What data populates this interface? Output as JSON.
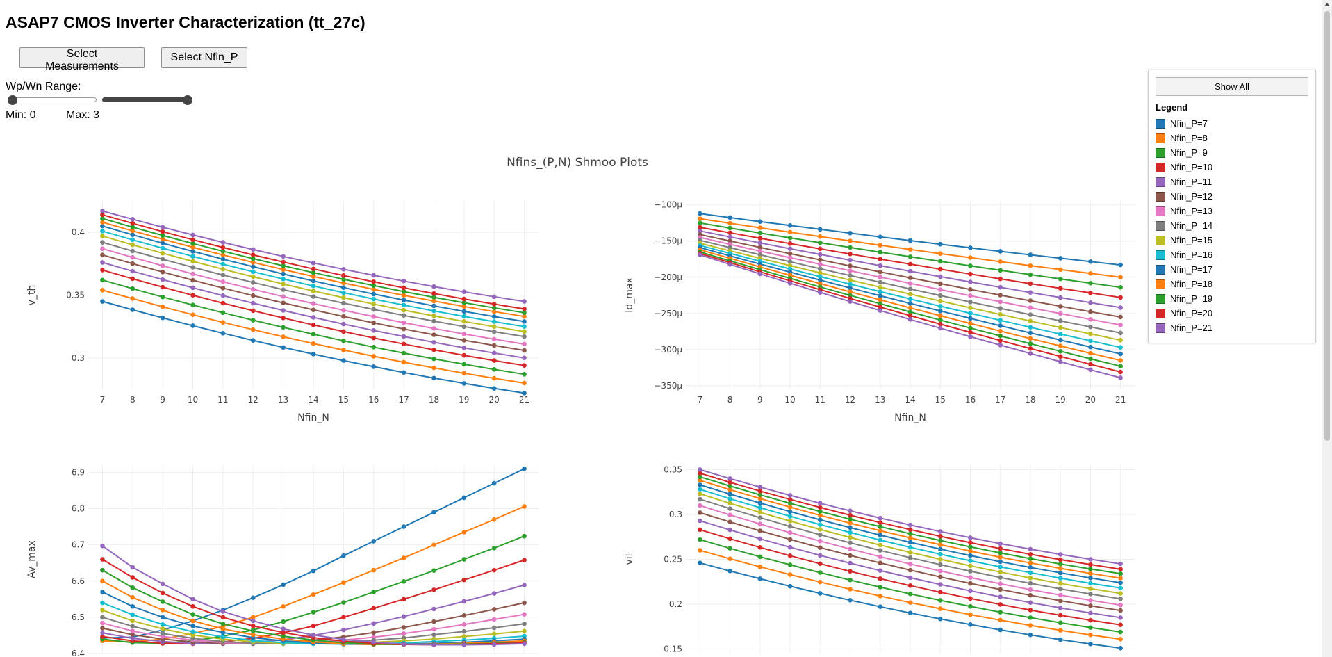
{
  "page": {
    "title": "ASAP7 CMOS Inverter Characterization (tt_27c)",
    "buttons": {
      "select_measurements": "Select Measurements",
      "select_nfin_p": "Select Nfin_P"
    },
    "range": {
      "label": "Wp/Wn Range:",
      "min_text": "Min: 0",
      "max_text": "Max: 3",
      "min_value": 0,
      "max_value": 3
    },
    "plots_title": "Nfins_(P,N) Shmoo Plots"
  },
  "legend": {
    "show_all": "Show All",
    "title": "Legend",
    "items": [
      {
        "label": "Nfin_P=7",
        "color": "#1f77b4"
      },
      {
        "label": "Nfin_P=8",
        "color": "#ff7f0e"
      },
      {
        "label": "Nfin_P=9",
        "color": "#2ca02c"
      },
      {
        "label": "Nfin_P=10",
        "color": "#d62728"
      },
      {
        "label": "Nfin_P=11",
        "color": "#9467bd"
      },
      {
        "label": "Nfin_P=12",
        "color": "#8c564b"
      },
      {
        "label": "Nfin_P=13",
        "color": "#e377c2"
      },
      {
        "label": "Nfin_P=14",
        "color": "#7f7f7f"
      },
      {
        "label": "Nfin_P=15",
        "color": "#bcbd22"
      },
      {
        "label": "Nfin_P=16",
        "color": "#17becf"
      },
      {
        "label": "Nfin_P=17",
        "color": "#1f77b4"
      },
      {
        "label": "Nfin_P=18",
        "color": "#ff7f0e"
      },
      {
        "label": "Nfin_P=19",
        "color": "#2ca02c"
      },
      {
        "label": "Nfin_P=20",
        "color": "#d62728"
      },
      {
        "label": "Nfin_P=21",
        "color": "#9467bd"
      }
    ]
  },
  "chart_data": [
    {
      "type": "line",
      "ylabel": "v_th",
      "xlabel": "Nfin_N",
      "x": [
        7,
        8,
        9,
        10,
        11,
        12,
        13,
        14,
        15,
        16,
        17,
        18,
        19,
        20,
        21
      ],
      "ylim": [
        0.275,
        0.425
      ],
      "yticks": [
        0.3,
        0.35,
        0.4
      ],
      "ytick_labels": [
        "0.3",
        "0.35",
        "0.4"
      ],
      "series": [
        {
          "name": "Nfin_P=7",
          "start": 0.345,
          "end": 0.272,
          "curve": 0.3
        },
        {
          "name": "Nfin_P=8",
          "start": 0.354,
          "end": 0.28,
          "curve": 0.3
        },
        {
          "name": "Nfin_P=9",
          "start": 0.362,
          "end": 0.287,
          "curve": 0.3
        },
        {
          "name": "Nfin_P=10",
          "start": 0.37,
          "end": 0.294,
          "curve": 0.3
        },
        {
          "name": "Nfin_P=11",
          "start": 0.376,
          "end": 0.3,
          "curve": 0.3
        },
        {
          "name": "Nfin_P=12",
          "start": 0.382,
          "end": 0.306,
          "curve": 0.3
        },
        {
          "name": "Nfin_P=13",
          "start": 0.387,
          "end": 0.311,
          "curve": 0.3
        },
        {
          "name": "Nfin_P=14",
          "start": 0.392,
          "end": 0.317,
          "curve": 0.3
        },
        {
          "name": "Nfin_P=15",
          "start": 0.397,
          "end": 0.321,
          "curve": 0.3
        },
        {
          "name": "Nfin_P=16",
          "start": 0.401,
          "end": 0.325,
          "curve": 0.3
        },
        {
          "name": "Nfin_P=17",
          "start": 0.405,
          "end": 0.329,
          "curve": 0.3
        },
        {
          "name": "Nfin_P=18",
          "start": 0.408,
          "end": 0.333,
          "curve": 0.3
        },
        {
          "name": "Nfin_P=19",
          "start": 0.411,
          "end": 0.336,
          "curve": 0.3
        },
        {
          "name": "Nfin_P=20",
          "start": 0.414,
          "end": 0.339,
          "curve": 0.3
        },
        {
          "name": "Nfin_P=21",
          "start": 0.417,
          "end": 0.345,
          "curve": 0.3
        }
      ]
    },
    {
      "type": "line",
      "ylabel": "Id_max",
      "xlabel": "Nfin_N",
      "x": [
        7,
        8,
        9,
        10,
        11,
        12,
        13,
        14,
        15,
        16,
        17,
        18,
        19,
        20,
        21
      ],
      "ylim": [
        -0.000355,
        -9.45e-05
      ],
      "yticks": [
        -0.0001,
        -0.00015,
        -0.0002,
        -0.00025,
        -0.0003,
        -0.00035
      ],
      "ytick_labels": [
        "−100μ",
        "−150μ",
        "−200μ",
        "−250μ",
        "−300μ",
        "−350μ"
      ],
      "series": [
        {
          "name": "Nfin_P=7",
          "start": -0.000112,
          "end": -0.000183,
          "curve": 0.1
        },
        {
          "name": "Nfin_P=8",
          "start": -0.000119,
          "end": -0.0002,
          "curve": 0.1
        },
        {
          "name": "Nfin_P=9",
          "start": -0.000125,
          "end": -0.000214,
          "curve": 0.1
        },
        {
          "name": "Nfin_P=10",
          "start": -0.000131,
          "end": -0.000228,
          "curve": 0.1
        },
        {
          "name": "Nfin_P=11",
          "start": -0.000136,
          "end": -0.000242,
          "curve": 0.1
        },
        {
          "name": "Nfin_P=12",
          "start": -0.000141,
          "end": -0.000255,
          "curve": 0.1
        },
        {
          "name": "Nfin_P=13",
          "start": -0.000145,
          "end": -0.000266,
          "curve": 0.1
        },
        {
          "name": "Nfin_P=14",
          "start": -0.000149,
          "end": -0.000277,
          "curve": 0.1
        },
        {
          "name": "Nfin_P=15",
          "start": -0.000153,
          "end": -0.000287,
          "curve": 0.1
        },
        {
          "name": "Nfin_P=16",
          "start": -0.000156,
          "end": -0.000297,
          "curve": 0.1
        },
        {
          "name": "Nfin_P=17",
          "start": -0.000159,
          "end": -0.000306,
          "curve": 0.1
        },
        {
          "name": "Nfin_P=18",
          "start": -0.000162,
          "end": -0.000315,
          "curve": 0.1
        },
        {
          "name": "Nfin_P=19",
          "start": -0.000165,
          "end": -0.000323,
          "curve": 0.1
        },
        {
          "name": "Nfin_P=20",
          "start": -0.000167,
          "end": -0.000331,
          "curve": 0.1
        },
        {
          "name": "Nfin_P=21",
          "start": -0.000169,
          "end": -0.000339,
          "curve": 0.1
        }
      ]
    },
    {
      "type": "line",
      "ylabel": "Av_max",
      "xlabel": "",
      "x": [
        7,
        8,
        9,
        10,
        11,
        12,
        13,
        14,
        15,
        16,
        17,
        18,
        19,
        20,
        21
      ],
      "ylim": [
        6.4,
        6.92
      ],
      "yticks": [
        6.4,
        6.5,
        6.6,
        6.7,
        6.8,
        6.9
      ],
      "ytick_labels": [
        "6.4",
        "6.5",
        "6.6",
        "6.7",
        "6.8",
        "6.9"
      ],
      "series": [
        {
          "name": "Nfin_P=7",
          "values": [
            6.443,
            6.445,
            6.465,
            6.49,
            6.52,
            6.554,
            6.59,
            6.628,
            6.67,
            6.71,
            6.75,
            6.79,
            6.83,
            6.87,
            6.91
          ]
        },
        {
          "name": "Nfin_P=8",
          "values": [
            6.435,
            6.432,
            6.44,
            6.455,
            6.475,
            6.5,
            6.53,
            6.563,
            6.596,
            6.63,
            6.664,
            6.7,
            6.735,
            6.77,
            6.806
          ]
        },
        {
          "name": "Nfin_P=9",
          "values": [
            6.44,
            6.43,
            6.428,
            6.435,
            6.448,
            6.465,
            6.488,
            6.514,
            6.541,
            6.57,
            6.599,
            6.629,
            6.66,
            6.691,
            6.724
          ]
        },
        {
          "name": "Nfin_P=10",
          "values": [
            6.447,
            6.435,
            6.428,
            6.427,
            6.432,
            6.442,
            6.457,
            6.476,
            6.5,
            6.525,
            6.55,
            6.576,
            6.603,
            6.63,
            6.658
          ]
        },
        {
          "name": "Nfin_P=11",
          "values": [
            6.457,
            6.442,
            6.433,
            6.428,
            6.427,
            6.431,
            6.438,
            6.45,
            6.465,
            6.483,
            6.502,
            6.523,
            6.544,
            6.566,
            6.589
          ]
        },
        {
          "name": "Nfin_P=12",
          "values": [
            6.47,
            6.452,
            6.44,
            6.432,
            6.428,
            6.427,
            6.43,
            6.437,
            6.446,
            6.458,
            6.472,
            6.488,
            6.505,
            6.522,
            6.54
          ]
        },
        {
          "name": "Nfin_P=13",
          "values": [
            6.484,
            6.462,
            6.447,
            6.437,
            6.43,
            6.428,
            6.428,
            6.431,
            6.437,
            6.445,
            6.455,
            6.467,
            6.48,
            6.494,
            6.508
          ]
        },
        {
          "name": "Nfin_P=14",
          "values": [
            6.5,
            6.475,
            6.455,
            6.442,
            6.433,
            6.428,
            6.427,
            6.428,
            6.431,
            6.437,
            6.443,
            6.452,
            6.461,
            6.471,
            6.482
          ]
        },
        {
          "name": "Nfin_P=15",
          "values": [
            6.52,
            6.49,
            6.468,
            6.451,
            6.44,
            6.432,
            6.428,
            6.427,
            6.428,
            6.431,
            6.435,
            6.44,
            6.447,
            6.454,
            6.462
          ]
        },
        {
          "name": "Nfin_P=16",
          "values": [
            6.54,
            6.507,
            6.48,
            6.46,
            6.446,
            6.436,
            6.43,
            6.427,
            6.426,
            6.427,
            6.429,
            6.433,
            6.437,
            6.442,
            6.448
          ]
        },
        {
          "name": "Nfin_P=17",
          "values": [
            6.57,
            6.53,
            6.5,
            6.476,
            6.458,
            6.444,
            6.435,
            6.429,
            6.426,
            6.425,
            6.426,
            6.428,
            6.431,
            6.435,
            6.44
          ]
        },
        {
          "name": "Nfin_P=18",
          "values": [
            6.6,
            6.555,
            6.52,
            6.49,
            6.468,
            6.452,
            6.44,
            6.432,
            6.427,
            6.425,
            6.425,
            6.426,
            6.428,
            6.431,
            6.435
          ]
        },
        {
          "name": "Nfin_P=19",
          "values": [
            6.63,
            6.582,
            6.543,
            6.508,
            6.482,
            6.462,
            6.448,
            6.437,
            6.43,
            6.426,
            6.425,
            6.425,
            6.426,
            6.428,
            6.431
          ]
        },
        {
          "name": "Nfin_P=20",
          "values": [
            6.66,
            6.61,
            6.567,
            6.53,
            6.5,
            6.476,
            6.458,
            6.444,
            6.434,
            6.428,
            6.425,
            6.424,
            6.425,
            6.427,
            6.429
          ]
        },
        {
          "name": "Nfin_P=21",
          "values": [
            6.697,
            6.638,
            6.592,
            6.55,
            6.516,
            6.49,
            6.468,
            6.451,
            6.439,
            6.431,
            6.426,
            6.424,
            6.424,
            6.425,
            6.427
          ]
        }
      ]
    },
    {
      "type": "line",
      "ylabel": "vil",
      "xlabel": "",
      "x": [
        7,
        8,
        9,
        10,
        11,
        12,
        13,
        14,
        15,
        16,
        17,
        18,
        19,
        20,
        21
      ],
      "ylim": [
        0.145,
        0.355
      ],
      "yticks": [
        0.15,
        0.2,
        0.25,
        0.3,
        0.35
      ],
      "ytick_labels": [
        "0.15",
        "0.2",
        "0.25",
        "0.3",
        "0.35"
      ],
      "series": [
        {
          "name": "Nfin_P=7",
          "start": 0.246,
          "end": 0.151,
          "curve": 0.35
        },
        {
          "name": "Nfin_P=8",
          "start": 0.26,
          "end": 0.161,
          "curve": 0.35
        },
        {
          "name": "Nfin_P=9",
          "start": 0.272,
          "end": 0.169,
          "curve": 0.35
        },
        {
          "name": "Nfin_P=10",
          "start": 0.283,
          "end": 0.177,
          "curve": 0.35
        },
        {
          "name": "Nfin_P=11",
          "start": 0.293,
          "end": 0.185,
          "curve": 0.35
        },
        {
          "name": "Nfin_P=12",
          "start": 0.302,
          "end": 0.193,
          "curve": 0.35
        },
        {
          "name": "Nfin_P=13",
          "start": 0.31,
          "end": 0.199,
          "curve": 0.35
        },
        {
          "name": "Nfin_P=14",
          "start": 0.317,
          "end": 0.206,
          "curve": 0.35
        },
        {
          "name": "Nfin_P=15",
          "start": 0.323,
          "end": 0.212,
          "curve": 0.35
        },
        {
          "name": "Nfin_P=16",
          "start": 0.328,
          "end": 0.218,
          "curve": 0.35
        },
        {
          "name": "Nfin_P=17",
          "start": 0.333,
          "end": 0.224,
          "curve": 0.35
        },
        {
          "name": "Nfin_P=18",
          "start": 0.338,
          "end": 0.229,
          "curve": 0.35
        },
        {
          "name": "Nfin_P=19",
          "start": 0.342,
          "end": 0.234,
          "curve": 0.35
        },
        {
          "name": "Nfin_P=20",
          "start": 0.346,
          "end": 0.239,
          "curve": 0.35
        },
        {
          "name": "Nfin_P=21",
          "start": 0.35,
          "end": 0.245,
          "curve": 0.35
        }
      ]
    }
  ]
}
